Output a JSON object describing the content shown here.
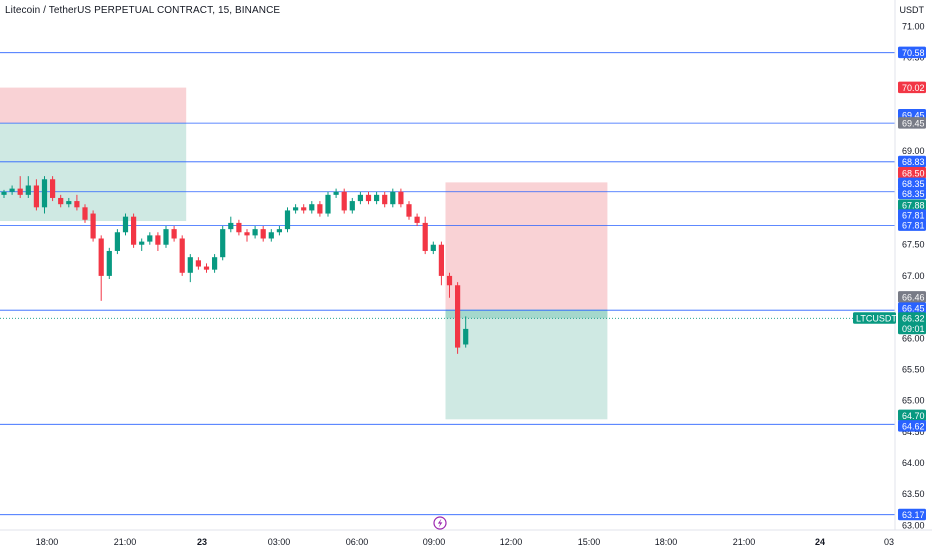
{
  "header": {
    "symbol_title": "Litecoin / TetherUS PERPETUAL CONTRACT, 15, BINANCE",
    "currency": "USDT"
  },
  "colors": {
    "up": "#089981",
    "down": "#f23645",
    "line": "#2962ff",
    "blue_tag": "#2962ff",
    "red_tag": "#f23645",
    "green_tag": "#089981",
    "gray_tag": "#787b86",
    "loss_zone": "#f9d2d5",
    "profit_zone": "#cfe9e3"
  },
  "chart_data": {
    "type": "candlestick",
    "y_axis": {
      "ticks": [
        71.0,
        70.5,
        70.0,
        69.5,
        69.0,
        68.5,
        68.0,
        67.5,
        67.0,
        66.5,
        66.0,
        65.5,
        65.0,
        64.5,
        64.0,
        63.5,
        63.0
      ],
      "tick_labels": [
        "71.00",
        "70.50",
        "70.00",
        "69.50",
        "69.00",
        "68.50",
        "68.00",
        "67.50",
        "67.00",
        "66.50",
        "66.00",
        "65.50",
        "65.00",
        "64.50",
        "64.00",
        "63.50",
        "63.00"
      ],
      "ylim": [
        62.95,
        71.3
      ]
    },
    "x_axis": {
      "tick_labels": [
        "18:00",
        "21:00",
        "23",
        "03:00",
        "06:00",
        "09:00",
        "12:00",
        "15:00",
        "18:00",
        "21:00",
        "24",
        "03"
      ]
    },
    "horizontal_lines": [
      70.58,
      69.45,
      68.83,
      68.35,
      67.81,
      66.45,
      64.62,
      63.17
    ],
    "price_tags": [
      {
        "label": "70.58",
        "value": 70.58,
        "color": "blue"
      },
      {
        "label": "70.02",
        "value": 70.02,
        "color": "red"
      },
      {
        "label": "69.45",
        "value": 69.58,
        "color": "blue"
      },
      {
        "label": "69.45",
        "value": 69.45,
        "color": "gray"
      },
      {
        "label": "68.83",
        "value": 68.83,
        "color": "blue"
      },
      {
        "label": "68.50",
        "value": 68.65,
        "color": "red"
      },
      {
        "label": "68.35",
        "value": 68.48,
        "color": "blue"
      },
      {
        "label": "68.35",
        "value": 68.32,
        "color": "blue"
      },
      {
        "label": "67.88",
        "value": 68.13,
        "color": "green"
      },
      {
        "label": "67.81",
        "value": 67.97,
        "color": "blue"
      },
      {
        "label": "67.81",
        "value": 67.81,
        "color": "blue"
      },
      {
        "label": "66.46",
        "value": 66.66,
        "color": "gray"
      },
      {
        "label": "66.45",
        "value": 66.48,
        "color": "blue"
      },
      {
        "label": "64.70",
        "value": 64.76,
        "color": "green"
      },
      {
        "label": "64.62",
        "value": 64.59,
        "color": "blue"
      },
      {
        "label": "63.17",
        "value": 63.17,
        "color": "blue"
      }
    ],
    "current_price": {
      "symbol": "LTCUSDT.P",
      "price": "66.32",
      "countdown": "09:01",
      "value": 66.32
    },
    "positions": [
      {
        "kind": "short",
        "start": 0,
        "end": 22,
        "stop": 70.02,
        "entry": 69.45,
        "target": 67.88
      },
      {
        "kind": "short",
        "start": 55,
        "end": 74,
        "stop": 68.5,
        "entry": 66.46,
        "target": 64.7
      }
    ],
    "candles": [
      [
        68.3,
        68.35,
        68.25,
        68.38
      ],
      [
        68.35,
        68.4,
        68.3,
        68.45
      ],
      [
        68.4,
        68.3,
        68.25,
        68.6
      ],
      [
        68.3,
        68.45,
        68.25,
        68.6
      ],
      [
        68.45,
        68.1,
        68.05,
        68.55
      ],
      [
        68.1,
        68.55,
        68.0,
        68.6
      ],
      [
        68.55,
        68.25,
        68.2,
        68.6
      ],
      [
        68.25,
        68.15,
        68.1,
        68.3
      ],
      [
        68.15,
        68.2,
        68.1,
        68.25
      ],
      [
        68.2,
        68.1,
        68.05,
        68.3
      ],
      [
        68.1,
        67.9,
        67.85,
        68.15
      ],
      [
        68.0,
        67.6,
        67.55,
        68.05
      ],
      [
        67.6,
        67.0,
        66.6,
        67.65
      ],
      [
        67.0,
        67.4,
        66.95,
        67.45
      ],
      [
        67.4,
        67.7,
        67.35,
        67.75
      ],
      [
        67.7,
        67.95,
        67.65,
        68.0
      ],
      [
        67.95,
        67.5,
        67.45,
        68.0
      ],
      [
        67.5,
        67.55,
        67.4,
        67.6
      ],
      [
        67.55,
        67.65,
        67.5,
        67.7
      ],
      [
        67.65,
        67.5,
        67.4,
        67.7
      ],
      [
        67.5,
        67.75,
        67.45,
        67.8
      ],
      [
        67.75,
        67.6,
        67.55,
        67.8
      ],
      [
        67.6,
        67.05,
        67.0,
        67.65
      ],
      [
        67.05,
        67.3,
        66.9,
        67.35
      ],
      [
        67.25,
        67.15,
        67.1,
        67.3
      ],
      [
        67.15,
        67.1,
        67.05,
        67.2
      ],
      [
        67.1,
        67.3,
        67.05,
        67.35
      ],
      [
        67.3,
        67.75,
        67.25,
        67.8
      ],
      [
        67.75,
        67.85,
        67.7,
        67.95
      ],
      [
        67.85,
        67.7,
        67.65,
        67.9
      ],
      [
        67.7,
        67.65,
        67.55,
        67.75
      ],
      [
        67.65,
        67.75,
        67.6,
        67.8
      ],
      [
        67.75,
        67.6,
        67.55,
        67.8
      ],
      [
        67.6,
        67.7,
        67.55,
        67.75
      ],
      [
        67.7,
        67.75,
        67.65,
        67.8
      ],
      [
        67.75,
        68.05,
        67.7,
        68.1
      ],
      [
        68.05,
        68.1,
        68.0,
        68.15
      ],
      [
        68.1,
        68.05,
        68.0,
        68.15
      ],
      [
        68.05,
        68.15,
        68.0,
        68.2
      ],
      [
        68.15,
        68.0,
        67.95,
        68.2
      ],
      [
        68.0,
        68.3,
        67.95,
        68.35
      ],
      [
        68.3,
        68.35,
        68.25,
        68.4
      ],
      [
        68.35,
        68.05,
        68.0,
        68.4
      ],
      [
        68.05,
        68.2,
        68.0,
        68.25
      ],
      [
        68.2,
        68.3,
        68.15,
        68.35
      ],
      [
        68.3,
        68.2,
        68.15,
        68.35
      ],
      [
        68.2,
        68.3,
        68.15,
        68.35
      ],
      [
        68.3,
        68.15,
        68.1,
        68.35
      ],
      [
        68.15,
        68.35,
        68.1,
        68.4
      ],
      [
        68.35,
        68.15,
        68.1,
        68.4
      ],
      [
        68.15,
        67.95,
        67.9,
        68.2
      ],
      [
        67.95,
        67.85,
        67.8,
        68.0
      ],
      [
        67.85,
        67.4,
        67.35,
        67.95
      ],
      [
        67.4,
        67.5,
        67.35,
        67.55
      ],
      [
        67.5,
        67.0,
        66.85,
        67.55
      ],
      [
        67.0,
        66.85,
        66.65,
        67.05
      ],
      [
        66.85,
        65.85,
        65.75,
        66.9
      ],
      [
        65.9,
        66.15,
        65.85,
        66.35
      ]
    ]
  }
}
